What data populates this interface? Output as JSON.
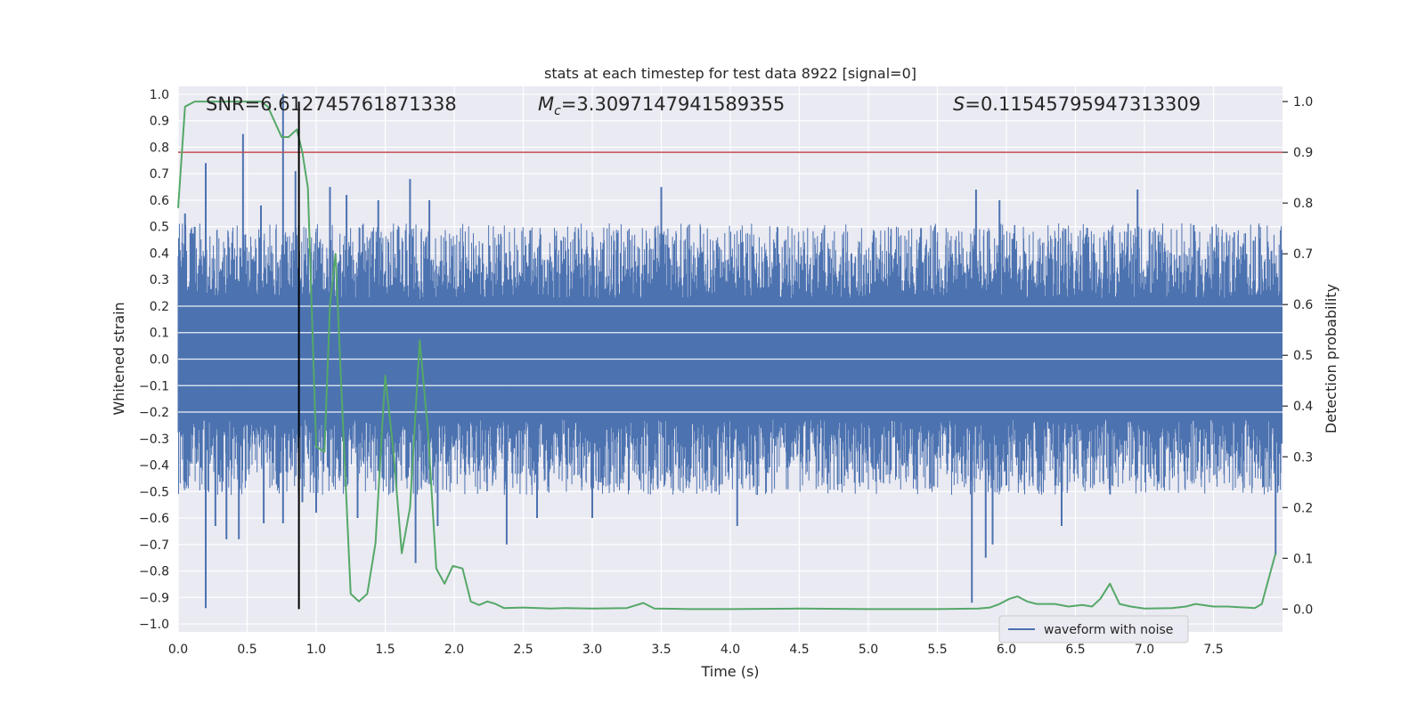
{
  "chart_data": {
    "type": "line",
    "title": "stats at each timestep for test data 8922 [signal=0]",
    "xlabel": "Time (s)",
    "ylabel_left": "Whitened strain",
    "ylabel_right": "Detection probability",
    "xlim": [
      0.0,
      8.0
    ],
    "ylim_left": [
      -1.03,
      1.03
    ],
    "ylim_right": [
      -0.045,
      1.03
    ],
    "x_ticks": [
      0.0,
      0.5,
      1.0,
      1.5,
      2.0,
      2.5,
      3.0,
      3.5,
      4.0,
      4.5,
      5.0,
      5.5,
      6.0,
      6.5,
      7.0,
      7.5
    ],
    "x_tick_labels": [
      "0.0",
      "0.5",
      "1.0",
      "1.5",
      "2.0",
      "2.5",
      "3.0",
      "3.5",
      "4.0",
      "4.5",
      "5.0",
      "5.5",
      "6.0",
      "6.5",
      "7.0",
      "7.5"
    ],
    "y_left_ticks": [
      1.0,
      0.9,
      0.8,
      0.7,
      0.6,
      0.5,
      0.4,
      0.3,
      0.2,
      0.1,
      0.0,
      -0.1,
      -0.2,
      -0.3,
      -0.4,
      -0.5,
      -0.6,
      -0.7,
      -0.8,
      -0.9,
      -1.0
    ],
    "y_left_tick_labels": [
      "1.0",
      "0.9",
      "0.8",
      "0.7",
      "0.6",
      "0.5",
      "0.4",
      "0.3",
      "0.2",
      "0.1",
      "0.0",
      "−0.1",
      "−0.2",
      "−0.3",
      "−0.4",
      "−0.5",
      "−0.6",
      "−0.7",
      "−0.8",
      "−0.9",
      "−1.0"
    ],
    "y_right_ticks": [
      1.0,
      0.9,
      0.8,
      0.7,
      0.6,
      0.5,
      0.4,
      0.3,
      0.2,
      0.1,
      0.0
    ],
    "y_right_tick_labels": [
      "1.0",
      "0.9",
      "0.8",
      "0.7",
      "0.6",
      "0.5",
      "0.4",
      "0.3",
      "0.2",
      "0.1",
      "0.0"
    ],
    "grid": true,
    "legend": {
      "placement": "lower-right",
      "entries": [
        "waveform with noise"
      ]
    },
    "annotations": {
      "snr": "SNR=6.612745761871338",
      "mc_symbol": "M",
      "mc_subscript": "c",
      "mc_value": "=3.3097147941589355",
      "s_symbol": "S",
      "s_value": "=0.11545795947313309"
    },
    "threshold_right": 0.9,
    "vline_x": 0.875,
    "colors": {
      "waveform": "#4c72b0",
      "probability": "#55a868",
      "threshold": "#c44e52",
      "vline": "#000000",
      "plot_background": "#eaeaf2",
      "grid": "#ffffff"
    },
    "series": [
      {
        "name": "waveform with noise",
        "axis": "left",
        "typical_envelope": 0.38,
        "spikes": [
          {
            "x": 0.05,
            "y": 0.55
          },
          {
            "x": 0.12,
            "y": 0.5
          },
          {
            "x": 0.2,
            "y": 0.74
          },
          {
            "x": 0.2,
            "y": -0.94
          },
          {
            "x": 0.27,
            "y": -0.63
          },
          {
            "x": 0.35,
            "y": -0.68
          },
          {
            "x": 0.47,
            "y": 0.85
          },
          {
            "x": 0.44,
            "y": -0.68
          },
          {
            "x": 0.6,
            "y": 0.58
          },
          {
            "x": 0.62,
            "y": -0.62
          },
          {
            "x": 0.76,
            "y": 1.0
          },
          {
            "x": 0.76,
            "y": -0.62
          },
          {
            "x": 0.85,
            "y": 0.71
          },
          {
            "x": 0.9,
            "y": -0.54
          },
          {
            "x": 1.0,
            "y": -0.58
          },
          {
            "x": 1.1,
            "y": 0.65
          },
          {
            "x": 1.22,
            "y": 0.62
          },
          {
            "x": 1.3,
            "y": -0.6
          },
          {
            "x": 1.45,
            "y": 0.6
          },
          {
            "x": 1.68,
            "y": 0.68
          },
          {
            "x": 1.72,
            "y": -0.77
          },
          {
            "x": 1.82,
            "y": 0.6
          },
          {
            "x": 1.88,
            "y": -0.63
          },
          {
            "x": 2.38,
            "y": -0.7
          },
          {
            "x": 2.6,
            "y": -0.6
          },
          {
            "x": 3.0,
            "y": -0.6
          },
          {
            "x": 3.5,
            "y": 0.65
          },
          {
            "x": 4.05,
            "y": -0.63
          },
          {
            "x": 5.75,
            "y": -0.92
          },
          {
            "x": 5.78,
            "y": 0.64
          },
          {
            "x": 5.85,
            "y": -0.75
          },
          {
            "x": 5.9,
            "y": -0.7
          },
          {
            "x": 5.95,
            "y": 0.6
          },
          {
            "x": 6.4,
            "y": -0.63
          },
          {
            "x": 6.95,
            "y": 0.64
          },
          {
            "x": 7.95,
            "y": -0.74
          }
        ]
      },
      {
        "name": "",
        "axis": "right",
        "x": [
          0.0,
          0.05,
          0.12,
          0.2,
          0.3,
          0.4,
          0.5,
          0.6,
          0.65,
          0.7,
          0.75,
          0.8,
          0.86,
          0.9,
          0.94,
          1.0,
          1.06,
          1.1,
          1.14,
          1.18,
          1.25,
          1.31,
          1.37,
          1.43,
          1.5,
          1.56,
          1.62,
          1.68,
          1.75,
          1.81,
          1.87,
          1.93,
          1.99,
          2.06,
          2.12,
          2.18,
          2.24,
          2.3,
          2.36,
          2.5,
          2.7,
          2.8,
          3.0,
          3.25,
          3.37,
          3.45,
          3.7,
          4.0,
          4.5,
          5.0,
          5.5,
          5.8,
          5.88,
          5.95,
          6.02,
          6.08,
          6.15,
          6.22,
          6.28,
          6.35,
          6.45,
          6.55,
          6.62,
          6.68,
          6.75,
          6.82,
          6.9,
          7.0,
          7.2,
          7.3,
          7.37,
          7.5,
          7.6,
          7.8,
          7.85,
          7.9,
          7.95
        ],
        "values": [
          0.79,
          0.99,
          1.0,
          1.0,
          1.0,
          1.0,
          1.0,
          1.0,
          0.99,
          0.96,
          0.93,
          0.93,
          0.945,
          0.9,
          0.83,
          0.32,
          0.31,
          0.6,
          0.7,
          0.45,
          0.03,
          0.015,
          0.03,
          0.13,
          0.46,
          0.31,
          0.11,
          0.2,
          0.53,
          0.35,
          0.08,
          0.05,
          0.085,
          0.08,
          0.015,
          0.008,
          0.015,
          0.01,
          0.002,
          0.003,
          0.001,
          0.002,
          0.001,
          0.002,
          0.012,
          0.001,
          0.0,
          0.0,
          0.001,
          0.0,
          0.0,
          0.001,
          0.003,
          0.01,
          0.02,
          0.025,
          0.015,
          0.01,
          0.01,
          0.01,
          0.005,
          0.008,
          0.005,
          0.02,
          0.05,
          0.01,
          0.005,
          0.001,
          0.002,
          0.005,
          0.01,
          0.005,
          0.005,
          0.002,
          0.01,
          0.06,
          0.11
        ]
      }
    ]
  }
}
